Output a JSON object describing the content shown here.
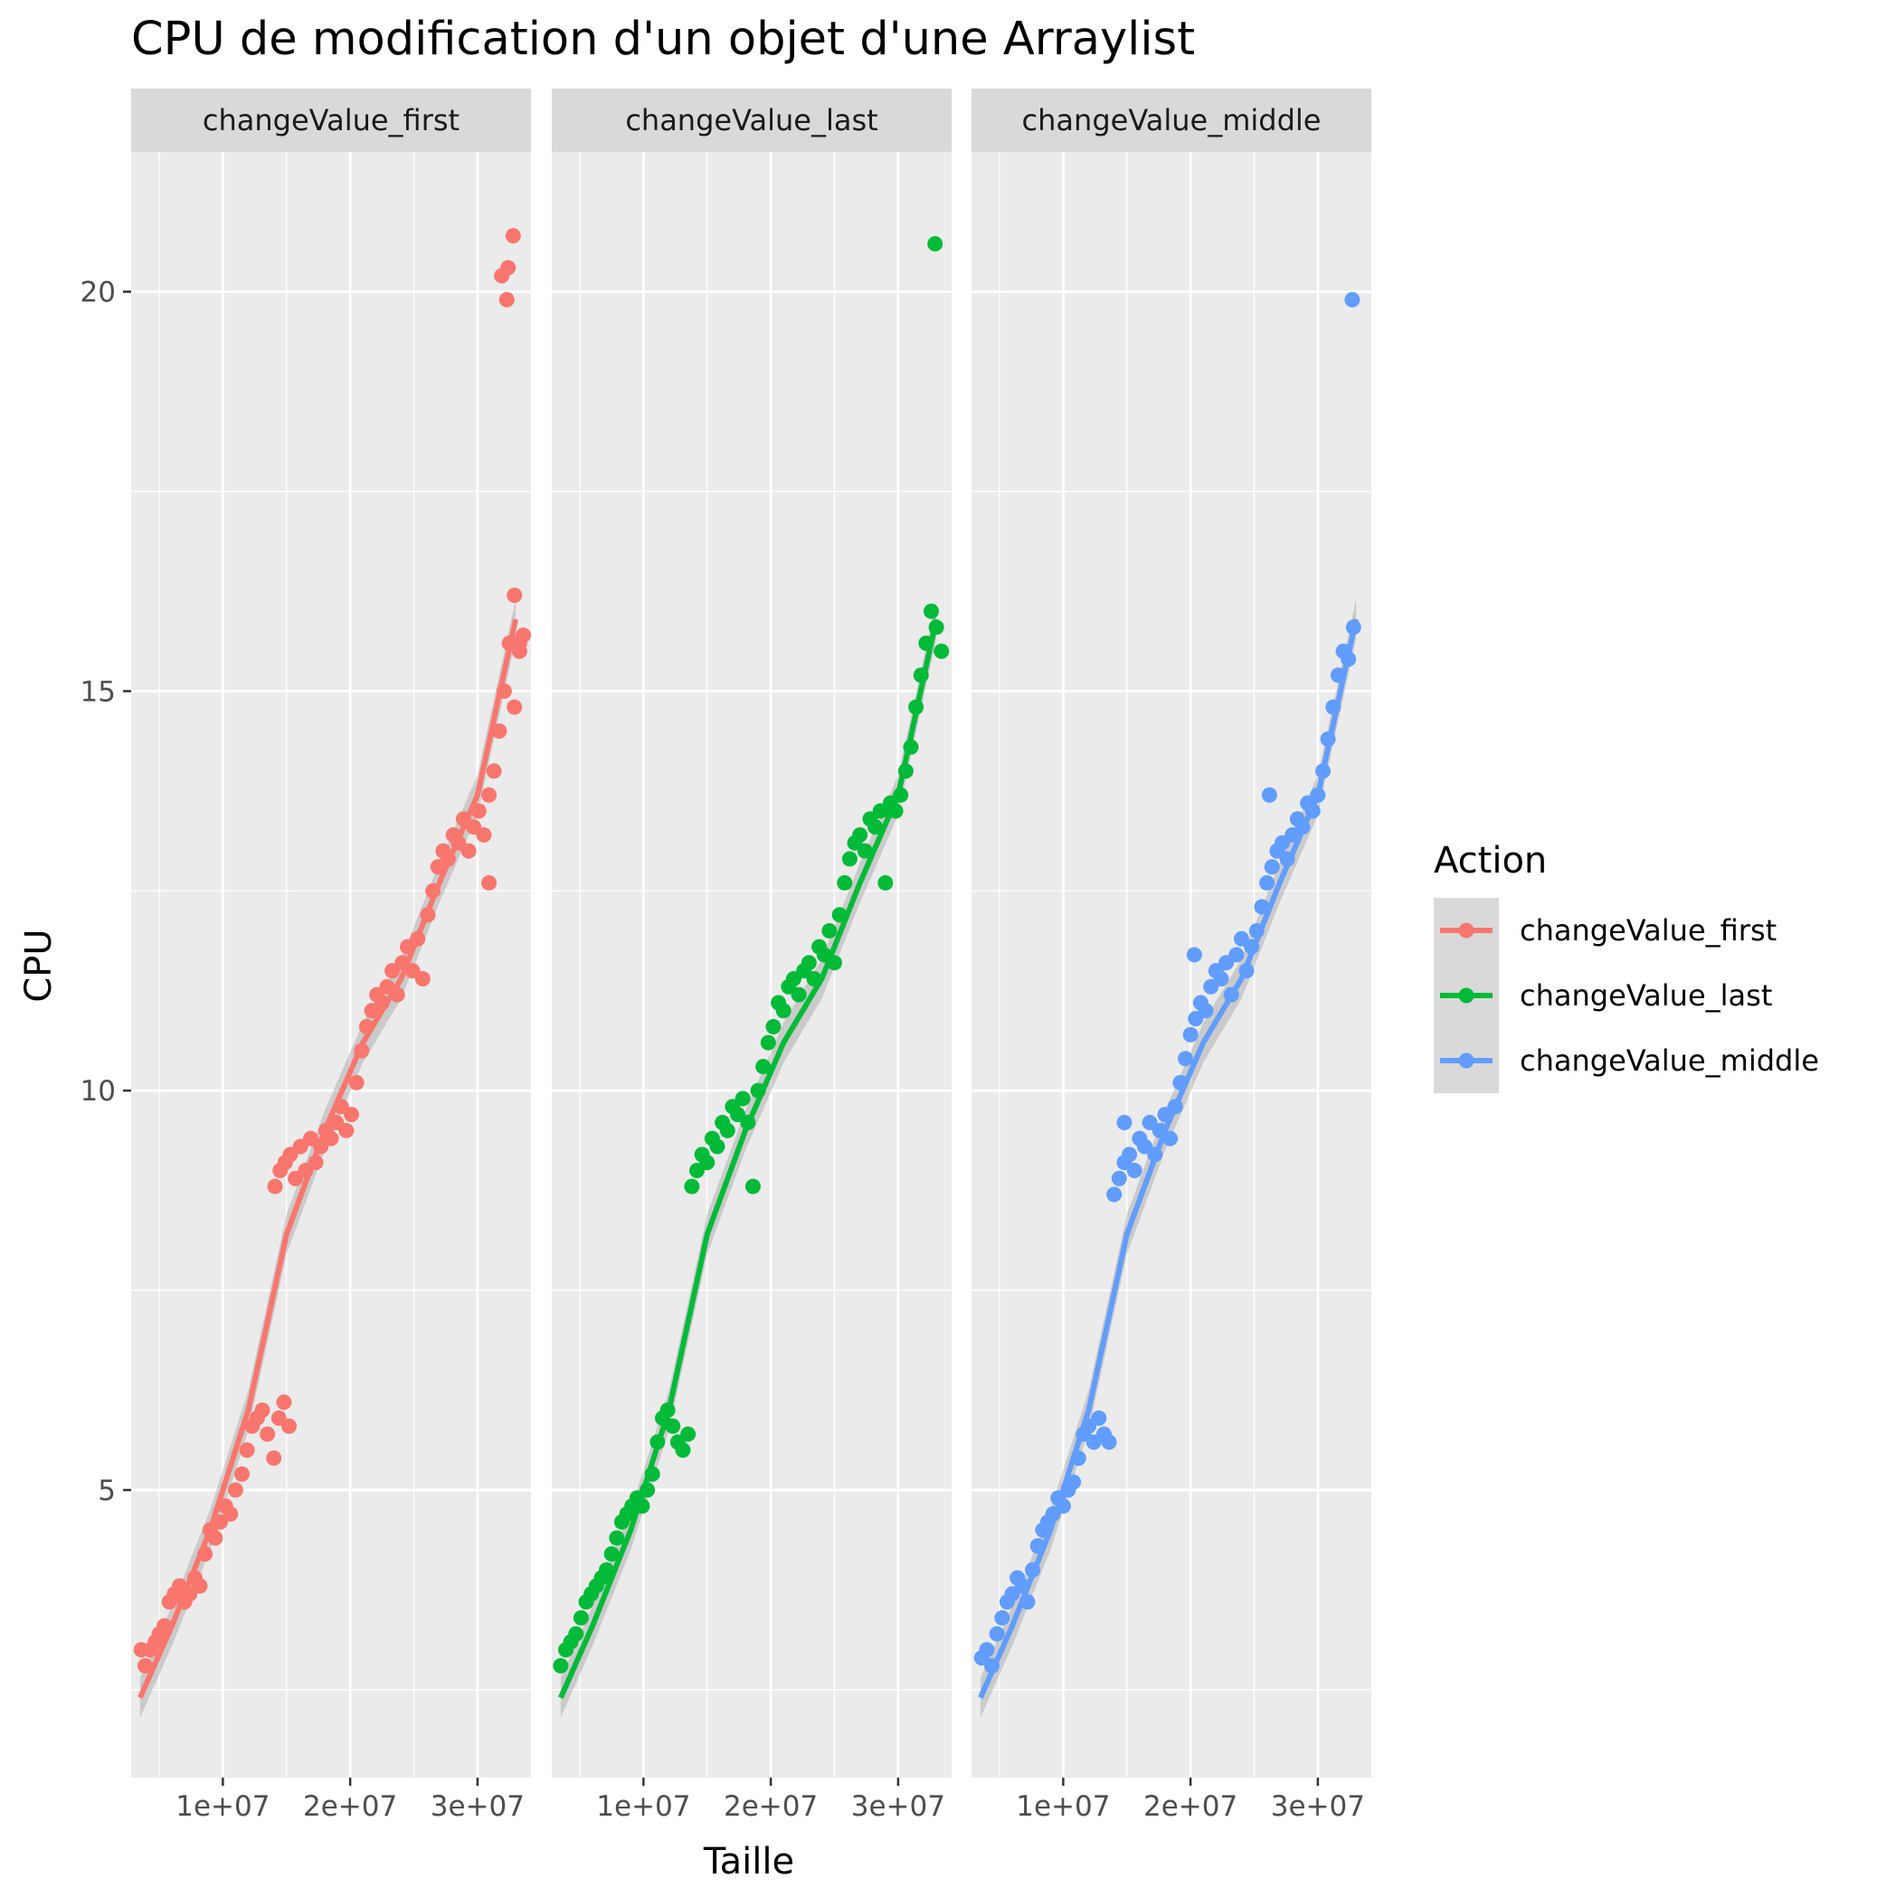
{
  "chart_data": {
    "type": "scatter",
    "title": "CPU de modification d'un objet d'une Arraylist",
    "xlabel": "Taille",
    "ylabel": "CPU",
    "xlim": [
      2800000,
      34200000
    ],
    "ylim": [
      1400000,
      21750000
    ],
    "ylim_units": [
      1.4,
      21.75
    ],
    "x_ticks": [
      10000000,
      20000000,
      30000000
    ],
    "x_tick_labels": [
      "1e+07",
      "2e+07",
      "3e+07"
    ],
    "y_ticks": [
      5,
      10,
      15,
      20
    ],
    "y_tick_labels": [
      "5",
      "10",
      "15",
      "20"
    ],
    "grid": true,
    "legend": {
      "title": "Action",
      "position": "right",
      "items": [
        "changeValue_first",
        "changeValue_last",
        "changeValue_middle"
      ]
    },
    "facets": [
      {
        "name": "changeValue_first",
        "color": "#F8766D",
        "points": [
          [
            3.6,
            3.0
          ],
          [
            3.9,
            2.8
          ],
          [
            4.3,
            3.0
          ],
          [
            4.7,
            3.1
          ],
          [
            5.0,
            3.2
          ],
          [
            5.4,
            3.3
          ],
          [
            5.8,
            3.6
          ],
          [
            6.2,
            3.7
          ],
          [
            6.6,
            3.8
          ],
          [
            7.0,
            3.6
          ],
          [
            7.4,
            3.7
          ],
          [
            7.8,
            3.9
          ],
          [
            8.2,
            3.8
          ],
          [
            8.6,
            4.2
          ],
          [
            9.0,
            4.5
          ],
          [
            9.4,
            4.4
          ],
          [
            9.8,
            4.6
          ],
          [
            10.2,
            4.8
          ],
          [
            10.6,
            4.7
          ],
          [
            11.0,
            5.0
          ],
          [
            11.5,
            5.2
          ],
          [
            11.9,
            5.5
          ],
          [
            12.3,
            5.8
          ],
          [
            12.7,
            5.9
          ],
          [
            13.1,
            6.0
          ],
          [
            13.5,
            5.7
          ],
          [
            14.0,
            5.4
          ],
          [
            14.4,
            5.9
          ],
          [
            14.8,
            6.1
          ],
          [
            15.2,
            5.8
          ],
          [
            14.1,
            8.8
          ],
          [
            14.5,
            9.0
          ],
          [
            14.9,
            9.1
          ],
          [
            15.3,
            9.2
          ],
          [
            15.7,
            8.9
          ],
          [
            16.1,
            9.3
          ],
          [
            16.5,
            9.0
          ],
          [
            16.9,
            9.4
          ],
          [
            17.3,
            9.1
          ],
          [
            17.7,
            9.3
          ],
          [
            18.1,
            9.5
          ],
          [
            18.5,
            9.4
          ],
          [
            18.9,
            9.6
          ],
          [
            19.3,
            9.8
          ],
          [
            19.7,
            9.5
          ],
          [
            20.1,
            9.7
          ],
          [
            20.5,
            10.1
          ],
          [
            20.9,
            10.5
          ],
          [
            21.3,
            10.8
          ],
          [
            21.7,
            11.0
          ],
          [
            22.1,
            11.2
          ],
          [
            22.5,
            11.1
          ],
          [
            22.9,
            11.3
          ],
          [
            23.3,
            11.5
          ],
          [
            23.7,
            11.2
          ],
          [
            24.1,
            11.6
          ],
          [
            24.5,
            11.8
          ],
          [
            24.9,
            11.5
          ],
          [
            25.3,
            11.9
          ],
          [
            25.7,
            11.4
          ],
          [
            26.1,
            12.2
          ],
          [
            26.5,
            12.5
          ],
          [
            26.9,
            12.8
          ],
          [
            27.3,
            13.0
          ],
          [
            27.7,
            12.9
          ],
          [
            28.1,
            13.2
          ],
          [
            28.5,
            13.1
          ],
          [
            28.9,
            13.4
          ],
          [
            29.3,
            13.0
          ],
          [
            29.7,
            13.3
          ],
          [
            30.1,
            13.5
          ],
          [
            30.5,
            13.2
          ],
          [
            30.9,
            13.7
          ],
          [
            31.3,
            14.0
          ],
          [
            31.7,
            14.5
          ],
          [
            32.1,
            15.0
          ],
          [
            32.5,
            15.6
          ],
          [
            32.9,
            16.2
          ],
          [
            33.3,
            15.5
          ],
          [
            33.6,
            15.7
          ],
          [
            30.9,
            12.6
          ],
          [
            32.9,
            14.8
          ],
          [
            33.3,
            15.6
          ],
          [
            31.9,
            20.2
          ],
          [
            32.4,
            20.3
          ],
          [
            32.8,
            20.7
          ],
          [
            32.3,
            19.9
          ]
        ]
      },
      {
        "name": "changeValue_last",
        "color": "#00BA38",
        "points": [
          [
            3.5,
            2.8
          ],
          [
            3.9,
            3.0
          ],
          [
            4.3,
            3.1
          ],
          [
            4.7,
            3.2
          ],
          [
            5.1,
            3.4
          ],
          [
            5.5,
            3.6
          ],
          [
            5.9,
            3.7
          ],
          [
            6.3,
            3.8
          ],
          [
            6.7,
            3.9
          ],
          [
            7.1,
            4.0
          ],
          [
            7.5,
            4.2
          ],
          [
            7.9,
            4.4
          ],
          [
            8.3,
            4.6
          ],
          [
            8.7,
            4.7
          ],
          [
            9.1,
            4.8
          ],
          [
            9.5,
            4.9
          ],
          [
            9.9,
            4.8
          ],
          [
            10.3,
            5.0
          ],
          [
            10.7,
            5.2
          ],
          [
            11.1,
            5.6
          ],
          [
            11.5,
            5.9
          ],
          [
            11.9,
            6.0
          ],
          [
            12.3,
            5.8
          ],
          [
            12.7,
            5.6
          ],
          [
            13.1,
            5.5
          ],
          [
            13.5,
            5.7
          ],
          [
            13.8,
            8.8
          ],
          [
            14.2,
            9.0
          ],
          [
            14.6,
            9.2
          ],
          [
            15.0,
            9.1
          ],
          [
            15.4,
            9.4
          ],
          [
            15.8,
            9.3
          ],
          [
            16.2,
            9.6
          ],
          [
            16.6,
            9.5
          ],
          [
            17.0,
            9.8
          ],
          [
            17.4,
            9.7
          ],
          [
            17.8,
            9.9
          ],
          [
            18.2,
            9.6
          ],
          [
            18.6,
            8.8
          ],
          [
            19.0,
            10.0
          ],
          [
            19.4,
            10.3
          ],
          [
            19.8,
            10.6
          ],
          [
            20.2,
            10.8
          ],
          [
            20.6,
            11.1
          ],
          [
            21.0,
            11.0
          ],
          [
            21.4,
            11.3
          ],
          [
            21.8,
            11.4
          ],
          [
            22.2,
            11.2
          ],
          [
            22.6,
            11.5
          ],
          [
            23.0,
            11.6
          ],
          [
            23.4,
            11.4
          ],
          [
            23.8,
            11.8
          ],
          [
            24.2,
            11.7
          ],
          [
            24.6,
            12.0
          ],
          [
            25.0,
            11.6
          ],
          [
            25.4,
            12.2
          ],
          [
            25.8,
            12.6
          ],
          [
            26.2,
            12.9
          ],
          [
            26.6,
            13.1
          ],
          [
            27.0,
            13.2
          ],
          [
            27.4,
            13.0
          ],
          [
            27.8,
            13.4
          ],
          [
            28.2,
            13.3
          ],
          [
            28.6,
            13.5
          ],
          [
            29.0,
            12.6
          ],
          [
            29.4,
            13.6
          ],
          [
            29.8,
            13.5
          ],
          [
            30.2,
            13.7
          ],
          [
            30.6,
            14.0
          ],
          [
            31.0,
            14.3
          ],
          [
            31.4,
            14.8
          ],
          [
            31.8,
            15.2
          ],
          [
            32.2,
            15.6
          ],
          [
            32.6,
            16.0
          ],
          [
            33.0,
            15.8
          ],
          [
            33.4,
            15.5
          ],
          [
            32.9,
            20.6
          ]
        ]
      },
      {
        "name": "changeValue_middle",
        "color": "#619CFF",
        "points": [
          [
            3.6,
            2.9
          ],
          [
            4.0,
            3.0
          ],
          [
            4.4,
            2.8
          ],
          [
            4.8,
            3.2
          ],
          [
            5.2,
            3.4
          ],
          [
            5.6,
            3.6
          ],
          [
            6.0,
            3.7
          ],
          [
            6.4,
            3.9
          ],
          [
            6.8,
            3.8
          ],
          [
            7.2,
            3.6
          ],
          [
            7.6,
            4.0
          ],
          [
            8.0,
            4.3
          ],
          [
            8.4,
            4.5
          ],
          [
            8.8,
            4.6
          ],
          [
            9.2,
            4.7
          ],
          [
            9.6,
            4.9
          ],
          [
            10.0,
            4.8
          ],
          [
            10.4,
            5.0
          ],
          [
            10.8,
            5.1
          ],
          [
            11.2,
            5.4
          ],
          [
            11.6,
            5.7
          ],
          [
            12.0,
            5.8
          ],
          [
            12.4,
            5.6
          ],
          [
            12.8,
            5.9
          ],
          [
            13.2,
            5.7
          ],
          [
            13.6,
            5.6
          ],
          [
            14.0,
            8.7
          ],
          [
            14.4,
            8.9
          ],
          [
            14.8,
            9.1
          ],
          [
            15.2,
            9.2
          ],
          [
            15.6,
            9.0
          ],
          [
            16.0,
            9.4
          ],
          [
            16.4,
            9.3
          ],
          [
            16.8,
            9.6
          ],
          [
            17.2,
            9.2
          ],
          [
            17.6,
            9.5
          ],
          [
            18.0,
            9.7
          ],
          [
            18.4,
            9.4
          ],
          [
            18.8,
            9.8
          ],
          [
            19.2,
            10.1
          ],
          [
            19.6,
            10.4
          ],
          [
            20.0,
            10.7
          ],
          [
            20.4,
            10.9
          ],
          [
            20.8,
            11.1
          ],
          [
            21.2,
            11.0
          ],
          [
            21.6,
            11.3
          ],
          [
            22.0,
            11.5
          ],
          [
            22.4,
            11.4
          ],
          [
            22.8,
            11.6
          ],
          [
            23.2,
            11.2
          ],
          [
            23.6,
            11.7
          ],
          [
            24.0,
            11.9
          ],
          [
            24.4,
            11.5
          ],
          [
            24.8,
            11.8
          ],
          [
            25.2,
            12.0
          ],
          [
            25.6,
            12.3
          ],
          [
            26.0,
            12.6
          ],
          [
            26.4,
            12.8
          ],
          [
            26.8,
            13.0
          ],
          [
            27.2,
            13.1
          ],
          [
            27.6,
            12.9
          ],
          [
            28.0,
            13.2
          ],
          [
            28.4,
            13.4
          ],
          [
            28.8,
            13.3
          ],
          [
            29.2,
            13.6
          ],
          [
            29.6,
            13.5
          ],
          [
            30.0,
            13.7
          ],
          [
            30.4,
            14.0
          ],
          [
            30.8,
            14.4
          ],
          [
            31.2,
            14.8
          ],
          [
            31.6,
            15.2
          ],
          [
            32.0,
            15.5
          ],
          [
            32.4,
            15.4
          ],
          [
            32.8,
            15.8
          ],
          [
            32.7,
            19.9
          ],
          [
            26.2,
            13.7
          ],
          [
            20.3,
            11.7
          ],
          [
            14.8,
            9.6
          ]
        ]
      }
    ],
    "smooth": [
      [
        3.5,
        2.4
      ],
      [
        6,
        3.3
      ],
      [
        9,
        4.5
      ],
      [
        12,
        6.0
      ],
      [
        15,
        8.2
      ],
      [
        18,
        9.5
      ],
      [
        21,
        10.6
      ],
      [
        24,
        11.4
      ],
      [
        27,
        12.6
      ],
      [
        30,
        13.7
      ],
      [
        33,
        15.9
      ]
    ]
  }
}
